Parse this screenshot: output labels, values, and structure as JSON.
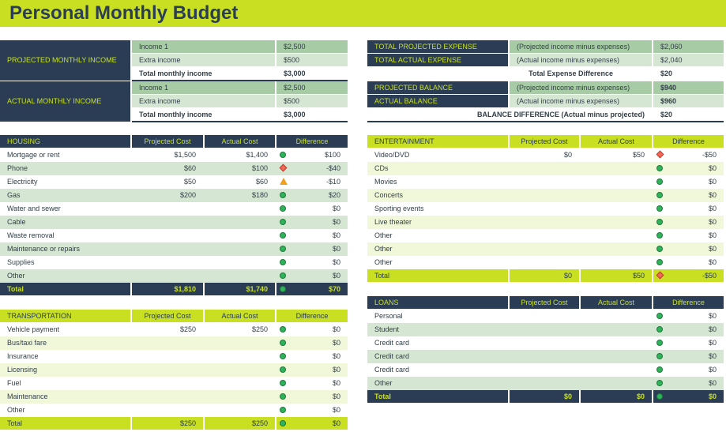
{
  "title": "Personal Monthly Budget",
  "colors": {
    "accent": "#c8e021",
    "navy": "#2b3d55",
    "green_row": "#d5e6d3",
    "lime_row": "#f1f8da"
  },
  "income": [
    {
      "label": "PROJECTED MONTHLY INCOME",
      "rows": [
        {
          "k": "Income 1",
          "v": "$2,500"
        },
        {
          "k": "Extra income",
          "v": "$500"
        },
        {
          "k": "Total monthly income",
          "v": "$3,000"
        }
      ]
    },
    {
      "label": "ACTUAL MONTHLY INCOME",
      "rows": [
        {
          "k": "Income 1",
          "v": "$2,500"
        },
        {
          "k": "Extra income",
          "v": "$500"
        },
        {
          "k": "Total monthly income",
          "v": "$3,000"
        }
      ]
    }
  ],
  "summary": {
    "total_projected_expense": {
      "label": "TOTAL PROJECTED EXPENSE",
      "desc": "(Projected income minus expenses)",
      "value": "$2,060"
    },
    "total_actual_expense": {
      "label": "TOTAL ACTUAL EXPENSE",
      "desc": "(Actual income minus expenses)",
      "value": "$2,040"
    },
    "expense_difference": {
      "label": "Total Expense Difference",
      "value": "$20"
    },
    "projected_balance": {
      "label": "PROJECTED BALANCE",
      "desc": "(Projected income minus expenses)",
      "value": "$940"
    },
    "actual_balance": {
      "label": "ACTUAL BALANCE",
      "desc": "(Actual income minus expenses)",
      "value": "$960"
    },
    "balance_difference": {
      "label": "BALANCE DIFFERENCE (Actual minus projected)",
      "value": "$20"
    }
  },
  "tables": [
    {
      "id": "housing",
      "theme": "navy",
      "headers": [
        "HOUSING",
        "Projected Cost",
        "Actual Cost",
        "Difference"
      ],
      "rows": [
        [
          "Mortgage or rent",
          "$1,500",
          "$1,400",
          "$100",
          "ok"
        ],
        [
          "Phone",
          "$60",
          "$100",
          "-$40",
          "bad"
        ],
        [
          "Electricity",
          "$50",
          "$60",
          "-$10",
          "warn"
        ],
        [
          "Gas",
          "$200",
          "$180",
          "$20",
          "ok"
        ],
        [
          "Water and sewer",
          "",
          "",
          "$0",
          "ok"
        ],
        [
          "Cable",
          "",
          "",
          "$0",
          "ok"
        ],
        [
          "Waste removal",
          "",
          "",
          "$0",
          "ok"
        ],
        [
          "Maintenance or repairs",
          "",
          "",
          "$0",
          "ok"
        ],
        [
          "Supplies",
          "",
          "",
          "$0",
          "ok"
        ],
        [
          "Other",
          "",
          "",
          "$0",
          "ok"
        ]
      ],
      "total": [
        "Total",
        "$1,810",
        "$1,740",
        "$70",
        "ok"
      ]
    },
    {
      "id": "entertainment",
      "theme": "lime",
      "headers": [
        "ENTERTAINMENT",
        "Projected Cost",
        "Actual Cost",
        "Difference"
      ],
      "rows": [
        [
          "Video/DVD",
          "$0",
          "$50",
          "-$50",
          "bad"
        ],
        [
          "CDs",
          "",
          "",
          "$0",
          "ok"
        ],
        [
          "Movies",
          "",
          "",
          "$0",
          "ok"
        ],
        [
          "Concerts",
          "",
          "",
          "$0",
          "ok"
        ],
        [
          "Sporting events",
          "",
          "",
          "$0",
          "ok"
        ],
        [
          "Live theater",
          "",
          "",
          "$0",
          "ok"
        ],
        [
          "Other",
          "",
          "",
          "$0",
          "ok"
        ],
        [
          "Other",
          "",
          "",
          "$0",
          "ok"
        ],
        [
          "Other",
          "",
          "",
          "$0",
          "ok"
        ]
      ],
      "total": [
        "Total",
        "$0",
        "$50",
        "-$50",
        "bad"
      ]
    },
    {
      "id": "transportation",
      "theme": "lime",
      "headers": [
        "TRANSPORTATION",
        "Projected Cost",
        "Actual Cost",
        "Difference"
      ],
      "rows": [
        [
          "Vehicle payment",
          "$250",
          "$250",
          "$0",
          "ok"
        ],
        [
          "Bus/taxi fare",
          "",
          "",
          "$0",
          "ok"
        ],
        [
          "Insurance",
          "",
          "",
          "$0",
          "ok"
        ],
        [
          "Licensing",
          "",
          "",
          "$0",
          "ok"
        ],
        [
          "Fuel",
          "",
          "",
          "$0",
          "ok"
        ],
        [
          "Maintenance",
          "",
          "",
          "$0",
          "ok"
        ],
        [
          "Other",
          "",
          "",
          "$0",
          "ok"
        ]
      ],
      "total": [
        "Total",
        "$250",
        "$250",
        "$0",
        "ok"
      ]
    },
    {
      "id": "loans",
      "theme": "navy",
      "headers": [
        "LOANS",
        "Projected Cost",
        "Actual Cost",
        "Difference"
      ],
      "rows": [
        [
          "Personal",
          "",
          "",
          "$0",
          "ok"
        ],
        [
          "Student",
          "",
          "",
          "$0",
          "ok"
        ],
        [
          "Credit card",
          "",
          "",
          "$0",
          "ok"
        ],
        [
          "Credit card",
          "",
          "",
          "$0",
          "ok"
        ],
        [
          "Credit card",
          "",
          "",
          "$0",
          "ok"
        ],
        [
          "Other",
          "",
          "",
          "$0",
          "ok"
        ]
      ],
      "total": [
        "Total",
        "$0",
        "$0",
        "$0",
        "ok"
      ]
    }
  ]
}
